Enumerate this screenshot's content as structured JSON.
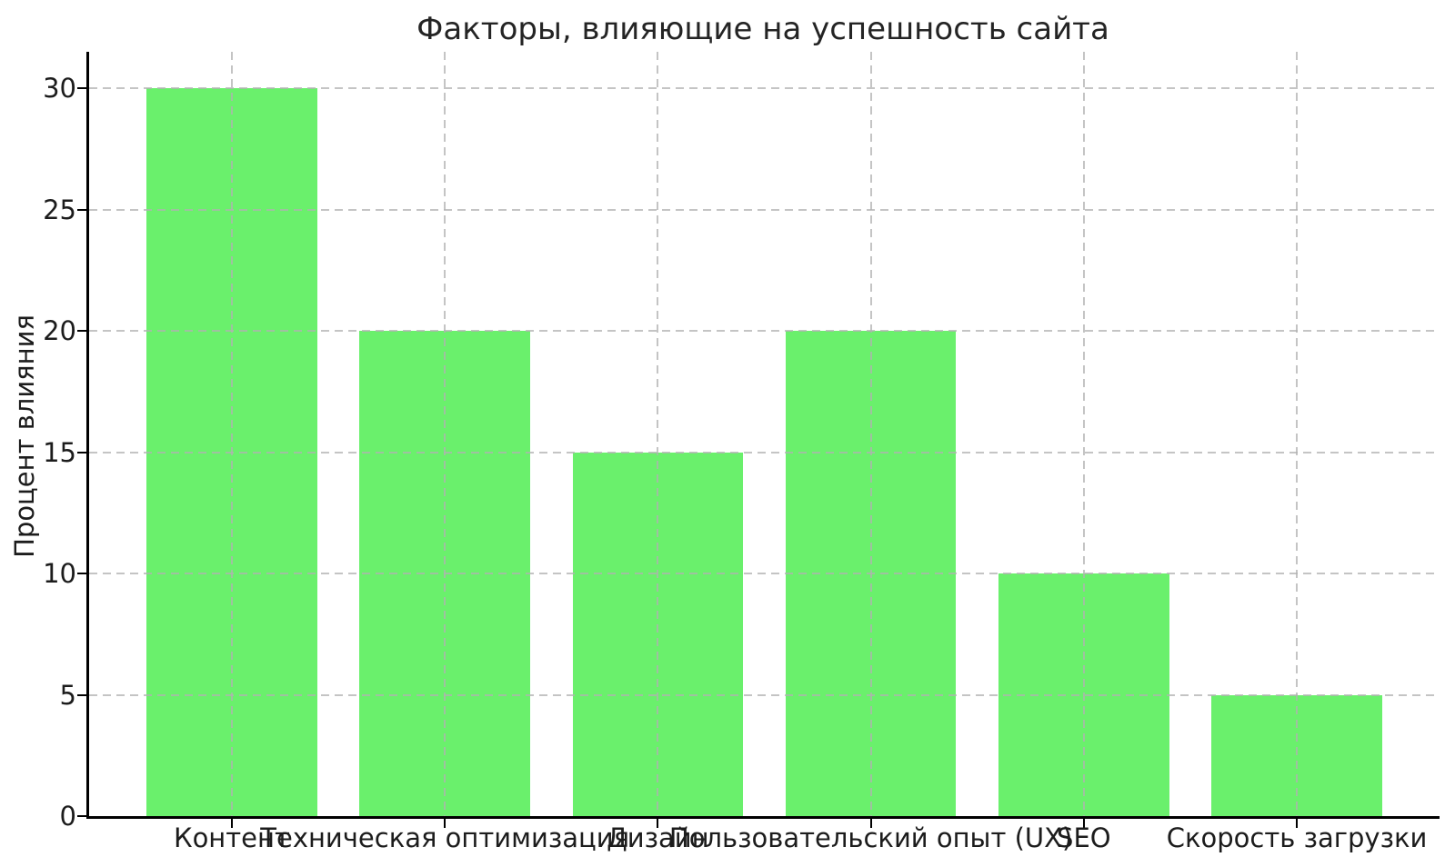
{
  "figure": {
    "background": "#ffffff"
  },
  "chart_data": {
    "type": "bar",
    "title": "Факторы, влияющие на успешность сайта",
    "xlabel": "",
    "ylabel": "Процент влияния",
    "categories": [
      "Контент",
      "Техническая оптимизация",
      "Дизайн",
      "Пользовательский опыт (UX)",
      "SEO",
      "Скорость загрузки"
    ],
    "values": [
      30,
      20,
      15,
      20,
      10,
      5
    ],
    "yticks": [
      0,
      5,
      10,
      15,
      20,
      25,
      30
    ],
    "ylim": [
      0,
      31.5
    ],
    "xlim": [
      -0.67,
      5.67
    ],
    "bar_width": 0.8,
    "bar_color": "#6af06c",
    "grid_color": "rgba(177,177,177,0.75)",
    "axis_color": "#000000",
    "text_color": "#1c1c1c",
    "grid": "dashed gridlines on both axes, drawn over bars",
    "legend": "none"
  }
}
